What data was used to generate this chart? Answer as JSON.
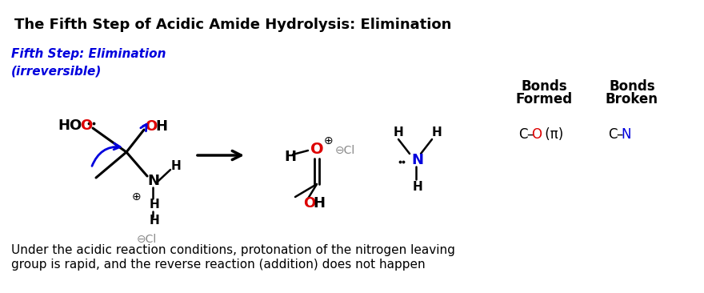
{
  "title": "The Fifth Step of Acidic Amide Hydrolysis: Elimination",
  "step_line1": "Fifth Step: Elimination",
  "step_line2": "(irreversible)",
  "bottom_line1": "Under the acidic reaction conditions, protonation of the nitrogen leaving",
  "bottom_line2": "group is rapid, and the reverse reaction (addition) does not happen",
  "bg_color": "#ffffff",
  "black": "#000000",
  "red": "#dd0000",
  "blue": "#0000dd",
  "gray": "#888888"
}
